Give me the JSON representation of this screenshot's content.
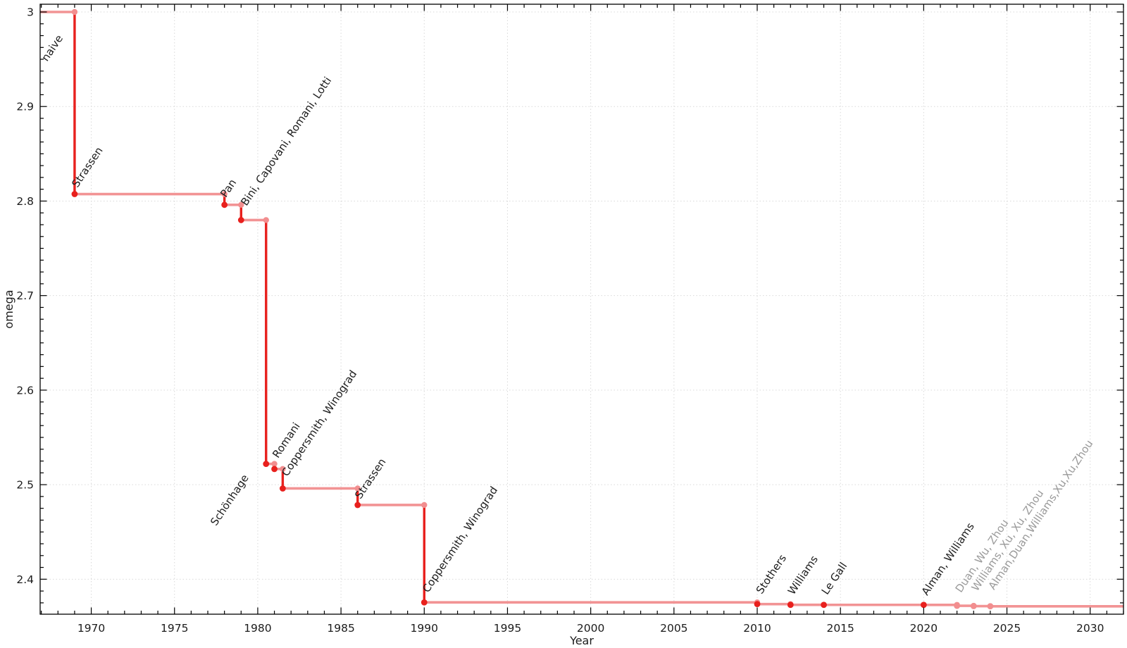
{
  "chart_data": {
    "type": "line",
    "step": "post",
    "title": "",
    "xlabel": "Year",
    "ylabel": "omega",
    "xlim": [
      1966.93,
      2032.0
    ],
    "ylim": [
      2.363,
      3.0082
    ],
    "x_major_ticks": [
      1970,
      1975,
      1980,
      1985,
      1990,
      1995,
      2000,
      2005,
      2010,
      2015,
      2020,
      2025,
      2030
    ],
    "x_minor_tick_step": 1,
    "y_major_ticks": [
      2.4,
      2.5,
      2.6,
      2.7,
      2.8,
      2.9,
      3
    ],
    "y_major_tick_labels": [
      "2.4",
      "2.5",
      "2.6",
      "2.7",
      "2.8",
      "2.9",
      "3"
    ],
    "y_minor_tick_step": 0.0125,
    "grid": "dotted-major",
    "legend": "none",
    "series_start": {
      "year": 1966.93,
      "omega": 3
    },
    "points": [
      {
        "year": 1969,
        "omega": 2.8074,
        "label": "Strassen",
        "recent": false
      },
      {
        "year": 1978,
        "omega": 2.796,
        "label": "Pan",
        "recent": false
      },
      {
        "year": 1979,
        "omega": 2.7799,
        "label": "Bini, Capovani, Romani, Lotti",
        "recent": false
      },
      {
        "year": 1980.5,
        "omega": 2.522,
        "label": "Schönhage",
        "recent": false
      },
      {
        "year": 1981,
        "omega": 2.5166,
        "label": "Romani",
        "recent": false
      },
      {
        "year": 1981.5,
        "omega": 2.496,
        "label": "Coppersmith, Winograd",
        "recent": false
      },
      {
        "year": 1986,
        "omega": 2.4785,
        "label": "Strassen",
        "recent": false
      },
      {
        "year": 1990,
        "omega": 2.3755,
        "label": "Coppersmith, Winograd",
        "recent": false
      },
      {
        "year": 2010,
        "omega": 2.3737,
        "label": "Stothers",
        "recent": false
      },
      {
        "year": 2012,
        "omega": 2.3729,
        "label": "Williams",
        "recent": false
      },
      {
        "year": 2014,
        "omega": 2.37287,
        "label": "Le Gall",
        "recent": false
      },
      {
        "year": 2020,
        "omega": 2.37286,
        "label": "Alman, Williams",
        "recent": false
      },
      {
        "year": 2022,
        "omega": 2.37188,
        "label": "Duan, Wu, Zhou",
        "recent": true
      },
      {
        "year": 2023,
        "omega": 2.37155,
        "label": "Williams, Xu, Xu, Zhou",
        "recent": true
      },
      {
        "year": 2024,
        "omega": 2.37134,
        "label": "Alman,Duan,Williams,Xu,Xu,Zhou",
        "recent": true
      }
    ],
    "annotations": [
      {
        "text": "naive",
        "year": 1967.35,
        "omega": 2.9471,
        "gray": false
      },
      {
        "text": "Strassen",
        "year": 1969.17,
        "omega": 2.8137,
        "gray": false
      },
      {
        "text": "Pan",
        "year": 1978.09,
        "omega": 2.8032,
        "gray": false
      },
      {
        "text": "Bini, Capovani, Romani, Lotti",
        "year": 1979.32,
        "omega": 2.7943,
        "gray": false
      },
      {
        "text": "Schönhage",
        "year": 1977.5,
        "omega": 2.4559,
        "gray": false
      },
      {
        "text": "Romani",
        "year": 1981.22,
        "omega": 2.5275,
        "gray": false
      },
      {
        "text": "Coppersmith, Winograd",
        "year": 1981.77,
        "omega": 2.5081,
        "gray": false
      },
      {
        "text": "Strassen",
        "year": 1986.17,
        "omega": 2.4843,
        "gray": false
      },
      {
        "text": "Coppersmith, Winograd",
        "year": 1990.23,
        "omega": 2.3852,
        "gray": false
      },
      {
        "text": "Stothers",
        "year": 2010.27,
        "omega": 2.3837,
        "gray": false
      },
      {
        "text": "Williams",
        "year": 2012.18,
        "omega": 2.3829,
        "gray": false
      },
      {
        "text": "Le Gall",
        "year": 2014.2,
        "omega": 2.3829,
        "gray": false
      },
      {
        "text": "Alman, Williams",
        "year": 2020.21,
        "omega": 2.3822,
        "gray": false
      },
      {
        "text": "Duan, Wu, Zhou",
        "year": 2022.24,
        "omega": 2.3852,
        "gray": true
      },
      {
        "text": "Williams, Xu, Xu, Zhou",
        "year": 2023.21,
        "omega": 2.3867,
        "gray": true
      },
      {
        "text": "Alman,Duan,Williams,Xu,Xu,Zhou",
        "year": 2024.22,
        "omega": 2.3882,
        "gray": true
      }
    ],
    "annotation_rotation_deg": -56,
    "colors": {
      "step_line": "#f29394",
      "drop_line": "#e8201d",
      "marker_established": "#e8201d",
      "marker_recent": "#f28e8f",
      "corner_marker": "#f28e8f",
      "label_text": "#1c1c1c",
      "label_text_recent": "#9a9a9a",
      "grid": "#d9d9d9",
      "axis": "#000000",
      "tick_label": "#1c1c1c"
    }
  }
}
